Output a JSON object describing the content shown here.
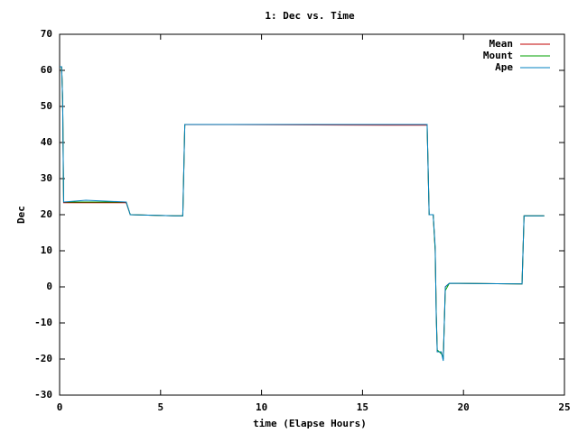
{
  "chart_data": {
    "type": "line",
    "title": "1: Dec vs. Time",
    "x_label": "time (Elapse Hours)",
    "y_label": "Dec",
    "x": [
      0,
      0.1,
      0.15,
      0.2,
      1.3,
      3.3,
      3.5,
      5.7,
      6.1,
      6.2,
      16.2,
      18.2,
      18.3,
      18.5,
      18.6,
      18.65,
      18.7,
      18.9,
      19.0,
      19.1,
      19.3,
      22.9,
      23.0,
      24.0
    ],
    "series": [
      {
        "name": "Mean",
        "color": "#c00000",
        "values": [
          61,
          61,
          52,
          23.3,
          23.3,
          23.3,
          20,
          19.7,
          19.7,
          45,
          44.8,
          44.8,
          20,
          20,
          10,
          -7,
          -18,
          -18,
          -20,
          0,
          1,
          0.8,
          19.7,
          19.7
        ]
      },
      {
        "name": "Mount",
        "color": "#00a000",
        "values": [
          61,
          61,
          52,
          23.5,
          23.5,
          23.5,
          20,
          19.7,
          19.7,
          45,
          45,
          45,
          20,
          20,
          10,
          -7,
          -17.5,
          -18.5,
          -19.5,
          -1,
          1,
          0.8,
          19.7,
          19.7
        ]
      },
      {
        "name": "Ape",
        "color": "#0080c0",
        "values": [
          61,
          61,
          52,
          23.5,
          24,
          23.5,
          20,
          19.7,
          19.7,
          45,
          45,
          45,
          20,
          20,
          11,
          -8,
          -18,
          -18,
          -20.5,
          0,
          1,
          0.8,
          19.7,
          19.7
        ]
      }
    ],
    "xlim": [
      0,
      25
    ],
    "xticks": [
      0,
      5,
      10,
      15,
      20,
      25
    ],
    "ylim": [
      -30,
      70
    ],
    "yticks": [
      -30,
      -20,
      -10,
      0,
      10,
      20,
      30,
      40,
      50,
      60,
      70
    ],
    "legend": "top-right"
  }
}
